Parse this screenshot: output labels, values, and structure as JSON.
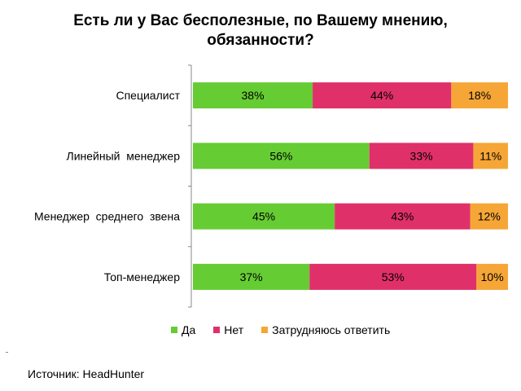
{
  "title_line1": "Есть ли у Вас бесполезные, по Вашему мнению,",
  "title_line2": "обязанности?",
  "source": "Источник: HeadHunter",
  "chart_data": {
    "type": "bar",
    "orientation": "horizontal",
    "stacked": true,
    "percent": true,
    "categories": [
      "Специалист",
      "Линейный  менеджер",
      "Менеджер  среднего  звена",
      "Топ-менеджер"
    ],
    "series": [
      {
        "name": "Да",
        "color": "#66cc33",
        "values": [
          38,
          56,
          45,
          37
        ],
        "labels": [
          "38%",
          "56%",
          "45%",
          "37%"
        ]
      },
      {
        "name": "Нет",
        "color": "#e0306a",
        "values": [
          44,
          33,
          43,
          53
        ],
        "labels": [
          "44%",
          "33%",
          "43%",
          "53%"
        ]
      },
      {
        "name": "Затрудняюсь  ответить",
        "color": "#f5a636",
        "values": [
          18,
          11,
          12,
          10
        ],
        "labels": [
          "18%",
          "11%",
          "12%",
          "10%"
        ]
      }
    ],
    "xlim": [
      0,
      100
    ],
    "grid": false,
    "legend_position": "bottom"
  }
}
